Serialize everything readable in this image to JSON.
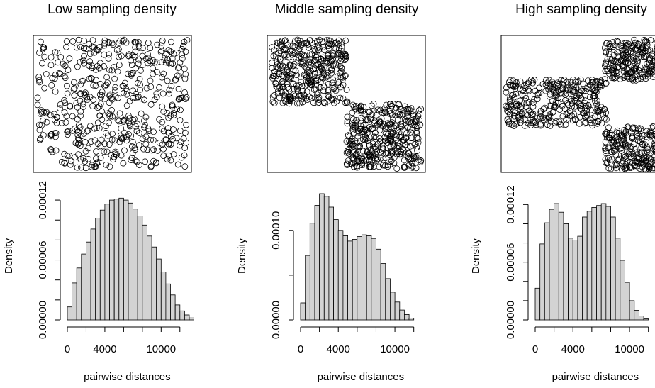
{
  "chart_data": [
    {
      "type": "scatter",
      "title": "Low sampling density",
      "description_visible": false,
      "points_style": "open circles",
      "density": "uniform across whole rectangle"
    },
    {
      "type": "bar",
      "subtype": "histogram",
      "xlabel": "pairwise distances",
      "ylabel": "Density",
      "xlim": [
        0,
        13500
      ],
      "ylim": [
        0,
        0.00013
      ],
      "x_ticks": [
        0,
        4000,
        10000
      ],
      "x_tick_positions": [
        0,
        2000,
        4000,
        6000,
        8000,
        10000,
        12000
      ],
      "y_ticks": [
        "0.00000",
        "0.00006",
        "0.00012"
      ],
      "y_tick_positions": [
        0,
        2e-05,
        4e-05,
        6e-05,
        8e-05,
        0.0001,
        0.00012
      ],
      "bin_width": 500,
      "bin_start": 0,
      "values": [
        1.3e-05,
        3.7e-05,
        5.2e-05,
        6.6e-05,
        7.8e-05,
        9.1e-05,
        0.000102,
        0.00011,
        0.000116,
        0.00012,
        0.000121,
        0.000122,
        0.00012,
        0.000117,
        0.000111,
        0.000104,
        9.5e-05,
        8.4e-05,
        7.3e-05,
        6.1e-05,
        4.8e-05,
        3.6e-05,
        2.5e-05,
        1.5e-05,
        9e-06,
        5e-06,
        2e-06
      ]
    },
    {
      "type": "scatter",
      "title": "Middle sampling density",
      "points_style": "open circles",
      "density": "two dense clusters: upper-left and lower-right"
    },
    {
      "type": "bar",
      "subtype": "histogram",
      "xlabel": "pairwise distances",
      "ylabel": "Density",
      "xlim": [
        0,
        13500
      ],
      "ylim": [
        0,
        0.000145
      ],
      "x_ticks": [
        0,
        4000,
        10000
      ],
      "x_tick_positions": [
        0,
        2000,
        4000,
        6000,
        8000,
        10000,
        12000
      ],
      "y_ticks": [
        "0.00000",
        "0.00010"
      ],
      "y_tick_positions": [
        0,
        5e-05,
        0.0001
      ],
      "bin_width": 500,
      "bin_start": 0,
      "values": [
        1.9e-05,
        7.2e-05,
        0.000108,
        0.000128,
        0.000141,
        0.000138,
        0.000126,
        0.000112,
        0.0001,
        9.4e-05,
        8.8e-05,
        9e-05,
        9.3e-05,
        9.5e-05,
        9.4e-05,
        9.1e-05,
        7.9e-05,
        6.3e-05,
        4.6e-05,
        3.1e-05,
        2e-05,
        1.1e-05,
        6e-06,
        2e-06
      ]
    },
    {
      "type": "scatter",
      "title": "High sampling density",
      "points_style": "open circles",
      "density": "three dense clusters: left band, upper-right, lower-right"
    },
    {
      "type": "bar",
      "subtype": "histogram",
      "xlabel": "pairwise distances",
      "ylabel": "Density",
      "xlim": [
        0,
        13500
      ],
      "ylim": [
        0,
        0.000135
      ],
      "x_ticks": [
        0,
        4000,
        10000
      ],
      "x_tick_positions": [
        0,
        2000,
        4000,
        6000,
        8000,
        10000,
        12000
      ],
      "y_ticks": [
        "0.00000",
        "0.00006",
        "0.00012"
      ],
      "y_tick_positions": [
        0,
        2e-05,
        4e-05,
        6e-05,
        8e-05,
        0.0001,
        0.00012
      ],
      "bin_width": 500,
      "bin_start": 0,
      "values": [
        3.3e-05,
        7.9e-05,
        0.000101,
        0.000115,
        0.000121,
        0.000112,
        0.0001,
        8.5e-05,
        8.3e-05,
        8.7e-05,
        0.000107,
        0.000113,
        0.000117,
        0.000119,
        0.000121,
        0.000118,
        0.000107,
        8.5e-05,
        6.2e-05,
        3.9e-05,
        2e-05,
        1e-05,
        4e-06,
        1e-06
      ]
    }
  ],
  "panels": [
    {
      "title": "Low sampling density",
      "xlabel": "pairwise distances",
      "ylabel": "Density"
    },
    {
      "title": "Middle sampling density",
      "xlabel": "pairwise distances",
      "ylabel": "Density"
    },
    {
      "title": "High sampling density",
      "xlabel": "pairwise distances",
      "ylabel": "Density"
    }
  ]
}
